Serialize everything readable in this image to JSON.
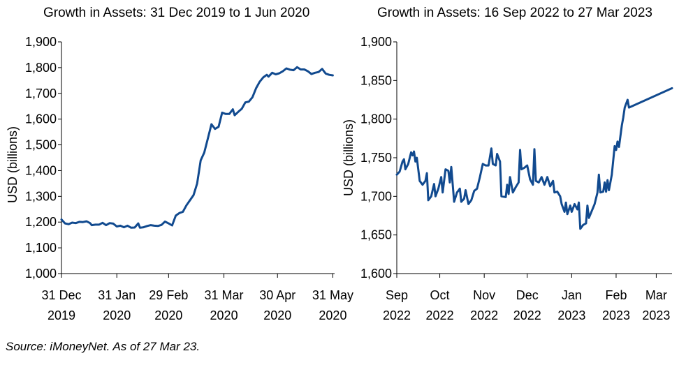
{
  "colors": {
    "line": "#114a8f",
    "axis": "#000000"
  },
  "source_note": "Source: iMoneyNet. As of 27 Mar 23.",
  "chart_data": [
    {
      "type": "line",
      "title": "Growth in Assets: 31 Dec 2019 to 1 Jun 2020",
      "ylabel": "USD (billions)",
      "ylim": [
        1000,
        1900
      ],
      "yticks": [
        1000,
        1100,
        1200,
        1300,
        1400,
        1500,
        1600,
        1700,
        1800,
        1900
      ],
      "ytick_labels": [
        "1,000",
        "1,100",
        "1,200",
        "1,300",
        "1,400",
        "1,500",
        "1,600",
        "1,700",
        "1,800",
        "1,900"
      ],
      "xlim": [
        "2019-12-31",
        "2020-06-01"
      ],
      "xticks": [
        {
          "date": "2019-12-31",
          "line1": "31 Dec",
          "line2": "2019"
        },
        {
          "date": "2020-01-31",
          "line1": "31 Jan",
          "line2": "2020"
        },
        {
          "date": "2020-02-29",
          "line1": "29 Feb",
          "line2": "2020"
        },
        {
          "date": "2020-03-31",
          "line1": "31 Mar",
          "line2": "2020"
        },
        {
          "date": "2020-04-30",
          "line1": "30 Apr",
          "line2": "2020"
        },
        {
          "date": "2020-05-31",
          "line1": "31 May",
          "line2": "2020"
        }
      ],
      "grid": false,
      "series": [
        {
          "points": [
            [
              "2019-12-31",
              1210
            ],
            [
              "2020-01-02",
              1195
            ],
            [
              "2020-01-04",
              1192
            ],
            [
              "2020-01-06",
              1198
            ],
            [
              "2020-01-08",
              1196
            ],
            [
              "2020-01-10",
              1201
            ],
            [
              "2020-01-12",
              1200
            ],
            [
              "2020-01-14",
              1203
            ],
            [
              "2020-01-16",
              1196
            ],
            [
              "2020-01-17",
              1188
            ],
            [
              "2020-01-19",
              1190
            ],
            [
              "2020-01-21",
              1190
            ],
            [
              "2020-01-23",
              1197
            ],
            [
              "2020-01-25",
              1188
            ],
            [
              "2020-01-27",
              1196
            ],
            [
              "2020-01-29",
              1194
            ],
            [
              "2020-01-31",
              1183
            ],
            [
              "2020-02-02",
              1186
            ],
            [
              "2020-02-04",
              1180
            ],
            [
              "2020-02-06",
              1186
            ],
            [
              "2020-02-08",
              1178
            ],
            [
              "2020-02-10",
              1179
            ],
            [
              "2020-02-12",
              1195
            ],
            [
              "2020-02-13",
              1178
            ],
            [
              "2020-02-15",
              1180
            ],
            [
              "2020-02-17",
              1185
            ],
            [
              "2020-02-19",
              1188
            ],
            [
              "2020-02-21",
              1186
            ],
            [
              "2020-02-23",
              1185
            ],
            [
              "2020-02-25",
              1189
            ],
            [
              "2020-02-27",
              1202
            ],
            [
              "2020-02-29",
              1195
            ],
            [
              "2020-03-02",
              1187
            ],
            [
              "2020-03-04",
              1225
            ],
            [
              "2020-03-06",
              1235
            ],
            [
              "2020-03-08",
              1240
            ],
            [
              "2020-03-10",
              1265
            ],
            [
              "2020-03-12",
              1285
            ],
            [
              "2020-03-14",
              1305
            ],
            [
              "2020-03-16",
              1350
            ],
            [
              "2020-03-18",
              1440
            ],
            [
              "2020-03-20",
              1470
            ],
            [
              "2020-03-22",
              1525
            ],
            [
              "2020-03-24",
              1580
            ],
            [
              "2020-03-26",
              1562
            ],
            [
              "2020-03-28",
              1570
            ],
            [
              "2020-03-30",
              1625
            ],
            [
              "2020-04-01",
              1620
            ],
            [
              "2020-04-03",
              1620
            ],
            [
              "2020-04-05",
              1638
            ],
            [
              "2020-04-06",
              1615
            ],
            [
              "2020-04-08",
              1628
            ],
            [
              "2020-04-10",
              1640
            ],
            [
              "2020-04-12",
              1665
            ],
            [
              "2020-04-14",
              1668
            ],
            [
              "2020-04-16",
              1685
            ],
            [
              "2020-04-18",
              1720
            ],
            [
              "2020-04-20",
              1745
            ],
            [
              "2020-04-22",
              1762
            ],
            [
              "2020-04-24",
              1772
            ],
            [
              "2020-04-25",
              1765
            ],
            [
              "2020-04-27",
              1780
            ],
            [
              "2020-04-29",
              1774
            ],
            [
              "2020-05-01",
              1778
            ],
            [
              "2020-05-03",
              1786
            ],
            [
              "2020-05-05",
              1797
            ],
            [
              "2020-05-07",
              1792
            ],
            [
              "2020-05-09",
              1790
            ],
            [
              "2020-05-11",
              1802
            ],
            [
              "2020-05-13",
              1793
            ],
            [
              "2020-05-15",
              1793
            ],
            [
              "2020-05-17",
              1786
            ],
            [
              "2020-05-19",
              1775
            ],
            [
              "2020-05-21",
              1780
            ],
            [
              "2020-05-23",
              1783
            ],
            [
              "2020-05-25",
              1795
            ],
            [
              "2020-05-27",
              1777
            ],
            [
              "2020-05-29",
              1772
            ],
            [
              "2020-05-31",
              1770
            ]
          ]
        }
      ]
    },
    {
      "type": "line",
      "title": "Growth in Assets: 16 Sep 2022 to 27 Mar 2023",
      "ylabel": "USD (billions)",
      "ylim": [
        1600,
        1900
      ],
      "yticks": [
        1600,
        1650,
        1700,
        1750,
        1800,
        1850,
        1900
      ],
      "ytick_labels": [
        "1,600",
        "1,650",
        "1,700",
        "1,750",
        "1,800",
        "1,850",
        "1,900"
      ],
      "xlim": [
        "2022-09-16",
        "2023-03-27"
      ],
      "xticks": [
        {
          "date": "2022-09-16",
          "line1": "Sep",
          "line2": "2022"
        },
        {
          "date": "2022-10-16",
          "line1": "Oct",
          "line2": "2022"
        },
        {
          "date": "2022-11-16",
          "line1": "Nov",
          "line2": "2022"
        },
        {
          "date": "2022-12-16",
          "line1": "Dec",
          "line2": "2022"
        },
        {
          "date": "2023-01-16",
          "line1": "Jan",
          "line2": "2023"
        },
        {
          "date": "2023-02-16",
          "line1": "Feb",
          "line2": "2023"
        },
        {
          "date": "2023-03-16",
          "line1": "Mar",
          "line2": "2023"
        }
      ],
      "grid": false,
      "series": [
        {
          "points": [
            [
              "2022-09-16",
              1728
            ],
            [
              "2022-09-18",
              1732
            ],
            [
              "2022-09-20",
              1745
            ],
            [
              "2022-09-21",
              1748
            ],
            [
              "2022-09-22",
              1735
            ],
            [
              "2022-09-24",
              1742
            ],
            [
              "2022-09-26",
              1757
            ],
            [
              "2022-09-27",
              1753
            ],
            [
              "2022-09-28",
              1758
            ],
            [
              "2022-09-29",
              1745
            ],
            [
              "2022-09-30",
              1750
            ],
            [
              "2022-10-02",
              1720
            ],
            [
              "2022-10-04",
              1715
            ],
            [
              "2022-10-06",
              1720
            ],
            [
              "2022-10-07",
              1730
            ],
            [
              "2022-10-08",
              1695
            ],
            [
              "2022-10-10",
              1700
            ],
            [
              "2022-10-12",
              1716
            ],
            [
              "2022-10-13",
              1700
            ],
            [
              "2022-10-15",
              1710
            ],
            [
              "2022-10-17",
              1725
            ],
            [
              "2022-10-18",
              1705
            ],
            [
              "2022-10-20",
              1735
            ],
            [
              "2022-10-22",
              1733
            ],
            [
              "2022-10-23",
              1718
            ],
            [
              "2022-10-24",
              1738
            ],
            [
              "2022-10-26",
              1693
            ],
            [
              "2022-10-28",
              1705
            ],
            [
              "2022-10-30",
              1710
            ],
            [
              "2022-10-31",
              1693
            ],
            [
              "2022-11-02",
              1697
            ],
            [
              "2022-11-03",
              1708
            ],
            [
              "2022-11-05",
              1690
            ],
            [
              "2022-11-07",
              1695
            ],
            [
              "2022-11-09",
              1707
            ],
            [
              "2022-11-11",
              1710
            ],
            [
              "2022-11-13",
              1725
            ],
            [
              "2022-11-15",
              1742
            ],
            [
              "2022-11-17",
              1740
            ],
            [
              "2022-11-19",
              1740
            ],
            [
              "2022-11-21",
              1762
            ],
            [
              "2022-11-22",
              1742
            ],
            [
              "2022-11-24",
              1740
            ],
            [
              "2022-11-25",
              1755
            ],
            [
              "2022-11-27",
              1745
            ],
            [
              "2022-11-28",
              1700
            ],
            [
              "2022-12-01",
              1699
            ],
            [
              "2022-12-02",
              1715
            ],
            [
              "2022-12-03",
              1703
            ],
            [
              "2022-12-04",
              1725
            ],
            [
              "2022-12-06",
              1705
            ],
            [
              "2022-12-08",
              1712
            ],
            [
              "2022-12-10",
              1718
            ],
            [
              "2022-12-11",
              1760
            ],
            [
              "2022-12-12",
              1735
            ],
            [
              "2022-12-14",
              1737
            ],
            [
              "2022-12-16",
              1740
            ],
            [
              "2022-12-18",
              1722
            ],
            [
              "2022-12-20",
              1715
            ],
            [
              "2022-12-21",
              1761
            ],
            [
              "2022-12-22",
              1720
            ],
            [
              "2022-12-24",
              1718
            ],
            [
              "2022-12-26",
              1725
            ],
            [
              "2022-12-28",
              1715
            ],
            [
              "2022-12-30",
              1725
            ],
            [
              "2023-01-01",
              1713
            ],
            [
              "2023-01-03",
              1720
            ],
            [
              "2023-01-04",
              1705
            ],
            [
              "2023-01-06",
              1706
            ],
            [
              "2023-01-08",
              1700
            ],
            [
              "2023-01-09",
              1690
            ],
            [
              "2023-01-11",
              1680
            ],
            [
              "2023-01-12",
              1692
            ],
            [
              "2023-01-13",
              1677
            ],
            [
              "2023-01-15",
              1688
            ],
            [
              "2023-01-16",
              1680
            ],
            [
              "2023-01-18",
              1690
            ],
            [
              "2023-01-20",
              1683
            ],
            [
              "2023-01-21",
              1692
            ],
            [
              "2023-01-22",
              1658
            ],
            [
              "2023-01-24",
              1663
            ],
            [
              "2023-01-26",
              1665
            ],
            [
              "2023-01-27",
              1688
            ],
            [
              "2023-01-28",
              1672
            ],
            [
              "2023-02-01",
              1690
            ],
            [
              "2023-02-03",
              1705
            ],
            [
              "2023-02-04",
              1728
            ],
            [
              "2023-02-05",
              1705
            ],
            [
              "2023-02-07",
              1706
            ],
            [
              "2023-02-08",
              1718
            ],
            [
              "2023-02-09",
              1706
            ],
            [
              "2023-02-10",
              1721
            ],
            [
              "2023-02-11",
              1708
            ],
            [
              "2023-02-13",
              1728
            ],
            [
              "2023-02-15",
              1765
            ],
            [
              "2023-02-16",
              1760
            ],
            [
              "2023-02-17",
              1771
            ],
            [
              "2023-02-18",
              1764
            ],
            [
              "2023-02-20",
              1792
            ],
            [
              "2023-02-21",
              1802
            ],
            [
              "2023-02-22",
              1815
            ],
            [
              "2023-02-24",
              1825
            ],
            [
              "2023-02-25",
              1815
            ],
            [
              "2023-03-27",
              1840
            ]
          ]
        }
      ]
    }
  ]
}
